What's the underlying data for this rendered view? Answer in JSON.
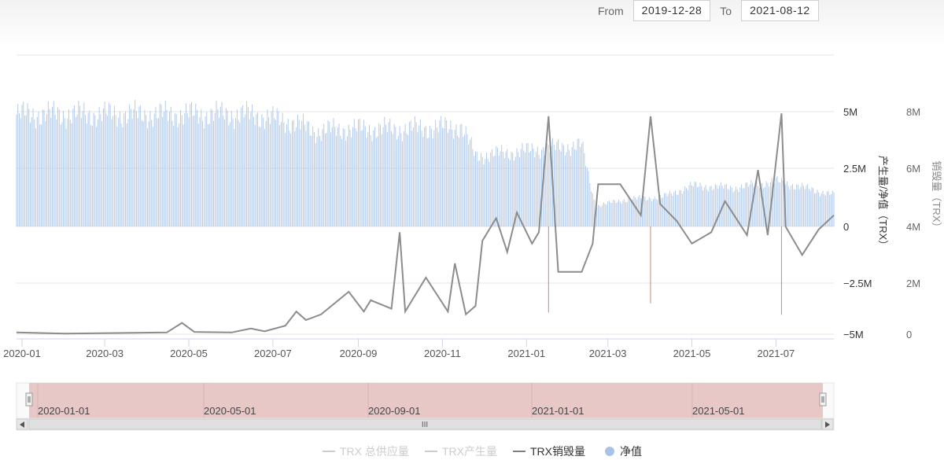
{
  "range": {
    "from_label": "From",
    "from_value": "2019-12-28",
    "to_label": "To",
    "to_value": "2021-08-12"
  },
  "chart_data": {
    "type": "bar",
    "x_ticks": [
      "2020-01",
      "2020-03",
      "2020-05",
      "2020-07",
      "2020-09",
      "2020-11",
      "2021-01",
      "2021-03",
      "2021-05",
      "2021-07"
    ],
    "y_left": {
      "label": "产生量/净值（TRX）",
      "ticks": [
        "5M",
        "2.5M",
        "0",
        "−2.5M",
        "−5M"
      ],
      "range": [
        -5000000,
        5000000
      ]
    },
    "y_right": {
      "label": "销毁量（TRX）",
      "ticks": [
        "8M",
        "6M",
        "4M",
        "2M",
        "0"
      ],
      "range": [
        0,
        8000000
      ]
    },
    "legend": [
      {
        "name": "TRX 总供应量",
        "color": "#cccccc",
        "symbol": "line",
        "active": false
      },
      {
        "name": "TRX产生量",
        "color": "#cccccc",
        "symbol": "line",
        "active": false
      },
      {
        "name": "TRX销毁量",
        "color": "#7f7f7f",
        "symbol": "line",
        "active": true
      },
      {
        "name": "净值",
        "color": "#a8c3e6",
        "symbol": "dot",
        "active": true
      }
    ],
    "net_value_series": {
      "name": "净值",
      "color": "#a8c3e6",
      "points": [
        [
          "2019-12-28",
          4950000
        ],
        [
          "2020-03-01",
          4950000
        ],
        [
          "2020-06-01",
          4950000
        ],
        [
          "2020-06-20",
          4900000
        ],
        [
          "2020-07-15",
          4600000
        ],
        [
          "2020-08-01",
          4200000
        ],
        [
          "2020-08-20",
          4300000
        ],
        [
          "2020-10-01",
          4300000
        ],
        [
          "2020-11-15",
          4400000
        ],
        [
          "2020-11-25",
          3100000
        ],
        [
          "2020-12-10",
          3200000
        ],
        [
          "2021-01-10",
          3400000
        ],
        [
          "2021-02-10",
          3600000
        ],
        [
          "2021-02-20",
          900000
        ],
        [
          "2021-03-15",
          1200000
        ],
        [
          "2021-04-10",
          1300000
        ],
        [
          "2021-05-01",
          1800000
        ],
        [
          "2021-06-01",
          1700000
        ],
        [
          "2021-07-01",
          2000000
        ],
        [
          "2021-08-12",
          1400000
        ]
      ]
    },
    "burn_series": {
      "name": "TRX销毁量",
      "color": "#8c8c8c",
      "points": [
        [
          "2019-12-28",
          60000
        ],
        [
          "2020-02-01",
          20000
        ],
        [
          "2020-04-15",
          60000
        ],
        [
          "2020-04-26",
          400000
        ],
        [
          "2020-05-05",
          80000
        ],
        [
          "2020-06-01",
          60000
        ],
        [
          "2020-06-15",
          200000
        ],
        [
          "2020-06-25",
          100000
        ],
        [
          "2020-07-10",
          300000
        ],
        [
          "2020-07-18",
          800000
        ],
        [
          "2020-07-25",
          500000
        ],
        [
          "2020-08-05",
          700000
        ],
        [
          "2020-08-25",
          1500000
        ],
        [
          "2020-09-05",
          800000
        ],
        [
          "2020-09-10",
          1200000
        ],
        [
          "2020-09-25",
          900000
        ],
        [
          "2020-10-01",
          3600000
        ],
        [
          "2020-10-05",
          800000
        ],
        [
          "2020-10-20",
          2000000
        ],
        [
          "2020-11-05",
          800000
        ],
        [
          "2020-11-10",
          2500000
        ],
        [
          "2020-11-18",
          700000
        ],
        [
          "2020-11-25",
          1000000
        ],
        [
          "2020-11-30",
          3300000
        ],
        [
          "2020-12-10",
          4100000
        ],
        [
          "2020-12-18",
          2900000
        ],
        [
          "2020-12-25",
          4300000
        ],
        [
          "2021-01-05",
          3200000
        ],
        [
          "2021-01-10",
          3600000
        ],
        [
          "2021-01-17",
          7700000
        ],
        [
          "2021-01-24",
          2200000
        ],
        [
          "2021-02-10",
          2200000
        ],
        [
          "2021-02-18",
          3200000
        ],
        [
          "2021-02-22",
          5300000
        ],
        [
          "2021-03-10",
          5300000
        ],
        [
          "2021-03-25",
          4200000
        ],
        [
          "2021-04-01",
          7700000
        ],
        [
          "2021-04-08",
          4600000
        ],
        [
          "2021-04-20",
          4000000
        ],
        [
          "2021-05-01",
          3200000
        ],
        [
          "2021-05-15",
          3600000
        ],
        [
          "2021-05-25",
          4700000
        ],
        [
          "2021-06-10",
          3500000
        ],
        [
          "2021-06-18",
          5800000
        ],
        [
          "2021-06-25",
          3500000
        ],
        [
          "2021-07-05",
          7800000
        ],
        [
          "2021-07-08",
          3800000
        ],
        [
          "2021-07-20",
          2800000
        ],
        [
          "2021-08-01",
          3700000
        ],
        [
          "2021-08-12",
          4200000
        ]
      ]
    },
    "navigator": {
      "labels": [
        "2020-01-01",
        "2020-05-01",
        "2020-09-01",
        "2021-01-01",
        "2021-05-01"
      ],
      "grip": "III"
    }
  }
}
